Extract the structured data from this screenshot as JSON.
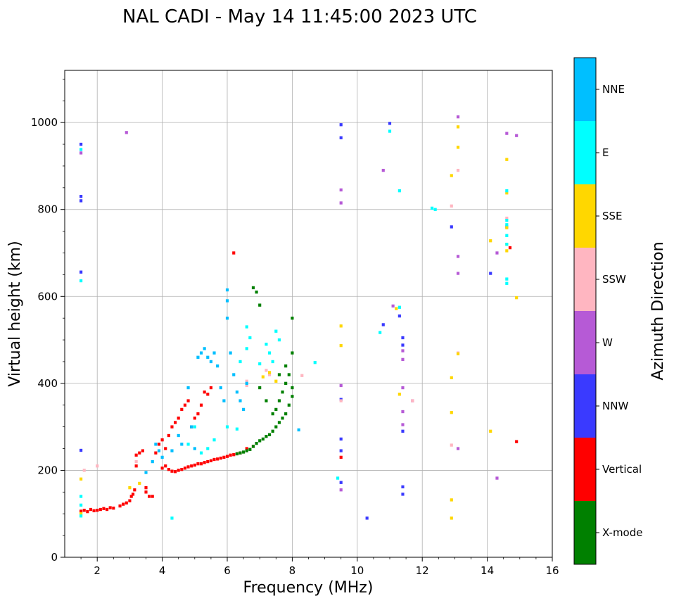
{
  "chart_data": {
    "type": "scatter",
    "title": "NAL CADI - May 14 11:45:00 2023 UTC",
    "xlabel": "Frequency (MHz)",
    "ylabel": "Virtual height (km)",
    "xlim": [
      1,
      16
    ],
    "ylim": [
      0,
      1120
    ],
    "xticks": [
      2,
      4,
      6,
      8,
      10,
      12,
      14,
      16
    ],
    "yticks": [
      0,
      200,
      400,
      600,
      800,
      1000
    ],
    "grid": true,
    "colorbar": {
      "label": "Azimuth Direction",
      "categories": [
        {
          "name": "X-mode",
          "color": "#008000"
        },
        {
          "name": "Vertical",
          "color": "#ff0000"
        },
        {
          "name": "NNW",
          "color": "#3a3aff"
        },
        {
          "name": "W",
          "color": "#b65ad6"
        },
        {
          "name": "SSW",
          "color": "#ffb6c1"
        },
        {
          "name": "SSE",
          "color": "#ffd700"
        },
        {
          "name": "E",
          "color": "#00ffff"
        },
        {
          "name": "NNE",
          "color": "#00bfff"
        }
      ]
    },
    "traces": [
      {
        "name": "Vertical",
        "points": [
          [
            1.5,
            106
          ],
          [
            1.6,
            108
          ],
          [
            1.7,
            105
          ],
          [
            1.8,
            110
          ],
          [
            1.9,
            107
          ],
          [
            2.0,
            108
          ],
          [
            2.1,
            110
          ],
          [
            2.2,
            112
          ],
          [
            2.3,
            110
          ],
          [
            2.4,
            114
          ],
          [
            2.5,
            113
          ],
          [
            2.7,
            118
          ],
          [
            2.8,
            122
          ],
          [
            2.9,
            125
          ],
          [
            3.0,
            130
          ],
          [
            3.05,
            140
          ],
          [
            3.1,
            145
          ],
          [
            3.15,
            155
          ],
          [
            3.2,
            210
          ],
          [
            3.2,
            235
          ],
          [
            3.3,
            240
          ],
          [
            3.4,
            245
          ],
          [
            3.5,
            160
          ],
          [
            3.5,
            150
          ],
          [
            3.6,
            140
          ],
          [
            3.7,
            140
          ],
          [
            3.8,
            240
          ],
          [
            3.9,
            260
          ],
          [
            4.0,
            270
          ],
          [
            4.0,
            205
          ],
          [
            4.1,
            250
          ],
          [
            4.1,
            210
          ],
          [
            4.2,
            280
          ],
          [
            4.2,
            202
          ],
          [
            4.3,
            300
          ],
          [
            4.3,
            198
          ],
          [
            4.4,
            310
          ],
          [
            4.4,
            197
          ],
          [
            4.5,
            320
          ],
          [
            4.5,
            200
          ],
          [
            4.6,
            340
          ],
          [
            4.6,
            202
          ],
          [
            4.7,
            350
          ],
          [
            4.7,
            205
          ],
          [
            4.8,
            360
          ],
          [
            4.8,
            208
          ],
          [
            4.9,
            300
          ],
          [
            4.9,
            210
          ],
          [
            5.0,
            320
          ],
          [
            5.0,
            212
          ],
          [
            5.1,
            330
          ],
          [
            5.1,
            215
          ],
          [
            5.2,
            350
          ],
          [
            5.2,
            215
          ],
          [
            5.3,
            380
          ],
          [
            5.3,
            218
          ],
          [
            5.4,
            375
          ],
          [
            5.4,
            220
          ],
          [
            5.5,
            390
          ],
          [
            5.5,
            222
          ],
          [
            5.6,
            225
          ],
          [
            5.7,
            226
          ],
          [
            5.8,
            228
          ],
          [
            5.9,
            230
          ],
          [
            6.0,
            232
          ],
          [
            6.1,
            235
          ],
          [
            6.2,
            700
          ],
          [
            6.2,
            236
          ],
          [
            6.3,
            238
          ],
          [
            6.4,
            240
          ],
          [
            6.6,
            250
          ],
          [
            6.8,
            255
          ],
          [
            9.5,
            230
          ],
          [
            14.9,
            266
          ],
          [
            14.7,
            712
          ]
        ]
      },
      {
        "name": "X-mode",
        "points": [
          [
            6.3,
            238
          ],
          [
            6.4,
            240
          ],
          [
            6.5,
            242
          ],
          [
            6.6,
            245
          ],
          [
            6.7,
            248
          ],
          [
            6.8,
            255
          ],
          [
            6.9,
            262
          ],
          [
            7.0,
            268
          ],
          [
            7.1,
            272
          ],
          [
            7.2,
            278
          ],
          [
            7.3,
            282
          ],
          [
            7.4,
            290
          ],
          [
            7.5,
            300
          ],
          [
            7.5,
            340
          ],
          [
            7.6,
            310
          ],
          [
            7.6,
            360
          ],
          [
            7.7,
            320
          ],
          [
            7.7,
            380
          ],
          [
            7.8,
            330
          ],
          [
            7.8,
            400
          ],
          [
            7.9,
            350
          ],
          [
            7.9,
            420
          ],
          [
            8.0,
            370
          ],
          [
            8.0,
            390
          ],
          [
            8.0,
            470
          ],
          [
            8.0,
            550
          ],
          [
            7.0,
            390
          ],
          [
            7.2,
            360
          ],
          [
            7.4,
            330
          ],
          [
            7.6,
            420
          ],
          [
            7.8,
            440
          ],
          [
            6.9,
            610
          ],
          [
            7.0,
            580
          ],
          [
            6.8,
            620
          ]
        ]
      },
      {
        "name": "NNW",
        "points": [
          [
            1.5,
            950
          ],
          [
            1.5,
            830
          ],
          [
            1.5,
            820
          ],
          [
            1.5,
            656
          ],
          [
            1.5,
            246
          ],
          [
            9.5,
            995
          ],
          [
            9.5,
            965
          ],
          [
            9.5,
            363
          ],
          [
            9.5,
            272
          ],
          [
            9.5,
            245
          ],
          [
            9.5,
            172
          ],
          [
            10.3,
            90
          ],
          [
            10.8,
            535
          ],
          [
            11.0,
            998
          ],
          [
            11.3,
            555
          ],
          [
            11.4,
            505
          ],
          [
            11.4,
            488
          ],
          [
            11.4,
            290
          ],
          [
            11.4,
            162
          ],
          [
            11.4,
            145
          ],
          [
            12.9,
            760
          ],
          [
            14.1,
            653
          ],
          [
            14.6,
            760
          ]
        ]
      },
      {
        "name": "W",
        "points": [
          [
            1.5,
            930
          ],
          [
            2.9,
            977
          ],
          [
            9.5,
            845
          ],
          [
            9.5,
            815
          ],
          [
            9.5,
            395
          ],
          [
            9.5,
            155
          ],
          [
            10.8,
            890
          ],
          [
            11.1,
            578
          ],
          [
            11.4,
            475
          ],
          [
            11.4,
            455
          ],
          [
            11.4,
            390
          ],
          [
            11.4,
            335
          ],
          [
            11.4,
            305
          ],
          [
            11.7,
            360
          ],
          [
            13.1,
            1013
          ],
          [
            13.1,
            692
          ],
          [
            13.1,
            653
          ],
          [
            13.1,
            250
          ],
          [
            14.3,
            700
          ],
          [
            14.3,
            182
          ],
          [
            14.6,
            975
          ],
          [
            14.9,
            970
          ]
        ]
      },
      {
        "name": "SSW",
        "points": [
          [
            1.6,
            200
          ],
          [
            2.0,
            210
          ],
          [
            3.2,
            220
          ],
          [
            6.6,
            405
          ],
          [
            6.6,
            395
          ],
          [
            7.2,
            430
          ],
          [
            7.3,
            420
          ],
          [
            8.3,
            418
          ],
          [
            9.5,
            360
          ],
          [
            11.7,
            360
          ],
          [
            12.9,
            808
          ],
          [
            12.9,
            258
          ],
          [
            13.1,
            890
          ],
          [
            13.1,
            470
          ],
          [
            14.6,
            780
          ]
        ]
      },
      {
        "name": "SSE",
        "points": [
          [
            1.5,
            180
          ],
          [
            1.5,
            100
          ],
          [
            3.3,
            170
          ],
          [
            3.0,
            160
          ],
          [
            7.1,
            415
          ],
          [
            7.3,
            425
          ],
          [
            7.5,
            405
          ],
          [
            9.5,
            532
          ],
          [
            9.5,
            487
          ],
          [
            11.2,
            572
          ],
          [
            11.3,
            375
          ],
          [
            12.9,
            878
          ],
          [
            12.9,
            413
          ],
          [
            12.9,
            333
          ],
          [
            12.9,
            132
          ],
          [
            12.9,
            90
          ],
          [
            13.1,
            990
          ],
          [
            13.1,
            943
          ],
          [
            13.1,
            468
          ],
          [
            14.1,
            728
          ],
          [
            14.1,
            290
          ],
          [
            14.6,
            915
          ],
          [
            14.6,
            758
          ],
          [
            14.6,
            720
          ],
          [
            14.6,
            705
          ],
          [
            14.6,
            838
          ],
          [
            14.9,
            597
          ]
        ]
      },
      {
        "name": "E",
        "points": [
          [
            1.5,
            938
          ],
          [
            1.5,
            636
          ],
          [
            1.5,
            140
          ],
          [
            1.5,
            120
          ],
          [
            1.5,
            95
          ],
          [
            4.3,
            90
          ],
          [
            4.8,
            260
          ],
          [
            5.0,
            300
          ],
          [
            5.2,
            240
          ],
          [
            5.4,
            250
          ],
          [
            5.6,
            270
          ],
          [
            6.0,
            300
          ],
          [
            6.3,
            295
          ],
          [
            6.4,
            450
          ],
          [
            6.6,
            480
          ],
          [
            6.6,
            530
          ],
          [
            6.7,
            505
          ],
          [
            7.0,
            445
          ],
          [
            7.2,
            490
          ],
          [
            7.3,
            470
          ],
          [
            7.4,
            450
          ],
          [
            7.5,
            520
          ],
          [
            7.6,
            500
          ],
          [
            8.7,
            448
          ],
          [
            9.4,
            182
          ],
          [
            10.7,
            517
          ],
          [
            11.0,
            980
          ],
          [
            11.3,
            843
          ],
          [
            11.3,
            575
          ],
          [
            12.3,
            803
          ],
          [
            12.4,
            800
          ],
          [
            14.6,
            843
          ],
          [
            14.6,
            775
          ],
          [
            14.6,
            765
          ],
          [
            14.6,
            740
          ],
          [
            14.6,
            720
          ],
          [
            14.6,
            640
          ],
          [
            14.6,
            630
          ]
        ]
      },
      {
        "name": "NNE",
        "points": [
          [
            3.5,
            195
          ],
          [
            3.7,
            220
          ],
          [
            3.8,
            260
          ],
          [
            3.9,
            245
          ],
          [
            4.0,
            230
          ],
          [
            4.3,
            245
          ],
          [
            4.5,
            280
          ],
          [
            4.6,
            260
          ],
          [
            4.8,
            390
          ],
          [
            4.9,
            300
          ],
          [
            5.0,
            250
          ],
          [
            5.1,
            460
          ],
          [
            5.2,
            470
          ],
          [
            5.3,
            480
          ],
          [
            5.4,
            460
          ],
          [
            5.5,
            450
          ],
          [
            5.6,
            470
          ],
          [
            5.7,
            440
          ],
          [
            5.8,
            390
          ],
          [
            5.9,
            360
          ],
          [
            6.0,
            615
          ],
          [
            6.0,
            590
          ],
          [
            6.0,
            550
          ],
          [
            6.1,
            470
          ],
          [
            6.2,
            420
          ],
          [
            6.3,
            380
          ],
          [
            6.4,
            360
          ],
          [
            6.5,
            340
          ],
          [
            6.6,
            400
          ],
          [
            8.2,
            293
          ]
        ]
      }
    ]
  }
}
